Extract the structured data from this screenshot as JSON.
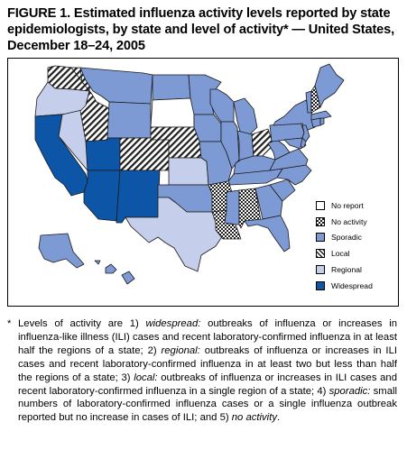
{
  "title": "FIGURE 1. Estimated influenza activity levels reported by state epidemiologists, by state and level of activity* — United States, December 18–24, 2005",
  "colors": {
    "no_report": "#ffffff",
    "no_activity": "#3a3a3a",
    "sporadic": "#7e9ad4",
    "local": "#ffffff",
    "regional": "#c5cfeb",
    "widespread": "#0d55a6",
    "border": "#1a1a1a"
  },
  "legend": {
    "items": [
      {
        "key": "no_report",
        "label": "No report",
        "pattern": "solid"
      },
      {
        "key": "no_activity",
        "label": "No activity",
        "pattern": "dots"
      },
      {
        "key": "sporadic",
        "label": "Sporadic",
        "pattern": "solid"
      },
      {
        "key": "local",
        "label": "Local",
        "pattern": "hatch"
      },
      {
        "key": "regional",
        "label": "Regional",
        "pattern": "solid"
      },
      {
        "key": "widespread",
        "label": "Widespread",
        "pattern": "solid"
      }
    ]
  },
  "states": {
    "WA": "local",
    "OR": "regional",
    "CA": "widespread",
    "NV": "regional",
    "ID": "local",
    "MT": "sporadic",
    "WY": "sporadic",
    "UT": "widespread",
    "AZ": "widespread",
    "CO": "local",
    "NM": "widespread",
    "ND": "sporadic",
    "SD": "no_report",
    "NE": "local",
    "KS": "regional",
    "OK": "sporadic",
    "TX": "regional",
    "MN": "sporadic",
    "IA": "sporadic",
    "MO": "sporadic",
    "AR": "no_activity",
    "LA": "no_activity",
    "WI": "sporadic",
    "IL": "sporadic",
    "MI": "sporadic",
    "IN": "sporadic",
    "OH": "local",
    "KY": "sporadic",
    "TN": "sporadic",
    "MS": "sporadic",
    "AL": "no_activity",
    "GA": "sporadic",
    "FL": "sporadic",
    "SC": "sporadic",
    "NC": "sporadic",
    "VA": "sporadic",
    "WV": "sporadic",
    "PA": "sporadic",
    "NY": "sporadic",
    "NJ": "sporadic",
    "MD": "sporadic",
    "DE": "sporadic",
    "CT": "sporadic",
    "RI": "sporadic",
    "MA": "sporadic",
    "VT": "sporadic",
    "NH": "no_activity",
    "ME": "sporadic",
    "AK": "sporadic",
    "HI": "sporadic"
  },
  "footnote": {
    "marker": "*",
    "segments": [
      {
        "text": "Levels of activity are 1) ",
        "italic": false
      },
      {
        "text": "widespread:",
        "italic": true
      },
      {
        "text": " outbreaks of influenza or increases in influenza-like illness (ILI) cases and recent laboratory-confirmed influenza in at least half the regions of a state; 2) ",
        "italic": false
      },
      {
        "text": "regional:",
        "italic": true
      },
      {
        "text": " outbreaks of influenza or increases in ILI cases and recent laboratory-confirmed influenza in at least two but less than half the regions of a state; 3) ",
        "italic": false
      },
      {
        "text": "local:",
        "italic": true
      },
      {
        "text": " outbreaks of influenza or increases in ILI cases and recent laboratory-confirmed influenza in a single region of a state; 4) ",
        "italic": false
      },
      {
        "text": "sporadic:",
        "italic": true
      },
      {
        "text": " small numbers of laboratory-confirmed influenza cases or a single influenza outbreak reported but no increase in cases of ILI; and 5) ",
        "italic": false
      },
      {
        "text": "no activity",
        "italic": true
      },
      {
        "text": ".",
        "italic": false
      }
    ]
  }
}
